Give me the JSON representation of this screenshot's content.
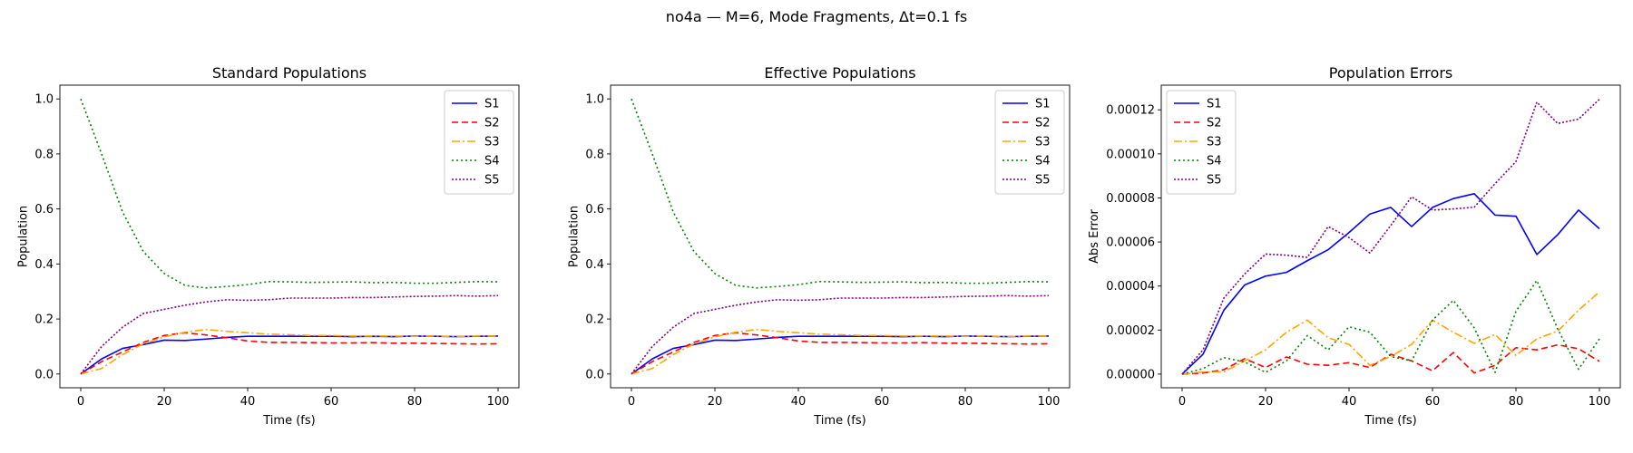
{
  "suptitle": "no4a — M=6, Mode Fragments, Δt=0.1 fs",
  "series_styles": [
    {
      "name": "S1",
      "color": "#0000ff",
      "dash": ""
    },
    {
      "name": "S2",
      "color": "#ff0000",
      "dash": "7,4"
    },
    {
      "name": "S3",
      "color": "#ffa500",
      "dash": "9,3,2,3"
    },
    {
      "name": "S4",
      "color": "#008000",
      "dash": "2,3"
    },
    {
      "name": "S5",
      "color": "#800080",
      "dash": "2,2"
    }
  ],
  "chart_data": [
    {
      "type": "line",
      "title": "Standard Populations",
      "xlabel": "Time (fs)",
      "ylabel": "Population",
      "xlim": [
        -5,
        105
      ],
      "ylim": [
        -0.05,
        1.05
      ],
      "xticks": [
        0,
        20,
        40,
        60,
        80,
        100
      ],
      "yticks": [
        0.0,
        0.2,
        0.4,
        0.6,
        0.8,
        1.0
      ],
      "ytick_labels": [
        "0.0",
        "0.2",
        "0.4",
        "0.6",
        "0.8",
        "1.0"
      ],
      "legend_position": "upper right",
      "grid": false,
      "x": [
        0,
        5,
        10,
        15,
        20,
        25,
        30,
        35,
        40,
        45,
        50,
        55,
        60,
        65,
        70,
        75,
        80,
        85,
        90,
        95,
        100
      ],
      "series": [
        {
          "name": "S1",
          "values": [
            0.0,
            0.055,
            0.093,
            0.107,
            0.123,
            0.122,
            0.127,
            0.133,
            0.137,
            0.137,
            0.137,
            0.137,
            0.137,
            0.136,
            0.137,
            0.136,
            0.138,
            0.137,
            0.136,
            0.137,
            0.138
          ]
        },
        {
          "name": "S2",
          "values": [
            0.0,
            0.045,
            0.08,
            0.115,
            0.14,
            0.15,
            0.142,
            0.132,
            0.12,
            0.115,
            0.115,
            0.114,
            0.113,
            0.113,
            0.114,
            0.112,
            0.112,
            0.111,
            0.11,
            0.109,
            0.11
          ]
        },
        {
          "name": "S3",
          "values": [
            0.0,
            0.02,
            0.07,
            0.11,
            0.135,
            0.152,
            0.162,
            0.155,
            0.15,
            0.145,
            0.143,
            0.14,
            0.14,
            0.138,
            0.138,
            0.138,
            0.137,
            0.138,
            0.136,
            0.138,
            0.138
          ]
        },
        {
          "name": "S4",
          "values": [
            1.0,
            0.8,
            0.59,
            0.445,
            0.365,
            0.322,
            0.313,
            0.318,
            0.325,
            0.336,
            0.335,
            0.333,
            0.334,
            0.335,
            0.332,
            0.333,
            0.33,
            0.33,
            0.333,
            0.336,
            0.335
          ]
        },
        {
          "name": "S5",
          "values": [
            0.0,
            0.1,
            0.17,
            0.22,
            0.235,
            0.25,
            0.262,
            0.27,
            0.268,
            0.27,
            0.276,
            0.276,
            0.276,
            0.278,
            0.278,
            0.28,
            0.282,
            0.283,
            0.285,
            0.283,
            0.285
          ]
        }
      ]
    },
    {
      "type": "line",
      "title": "Effective Populations",
      "xlabel": "Time (fs)",
      "ylabel": "Population",
      "xlim": [
        -5,
        105
      ],
      "ylim": [
        -0.05,
        1.05
      ],
      "xticks": [
        0,
        20,
        40,
        60,
        80,
        100
      ],
      "yticks": [
        0.0,
        0.2,
        0.4,
        0.6,
        0.8,
        1.0
      ],
      "ytick_labels": [
        "0.0",
        "0.2",
        "0.4",
        "0.6",
        "0.8",
        "1.0"
      ],
      "legend_position": "upper right",
      "grid": false,
      "x": [
        0,
        5,
        10,
        15,
        20,
        25,
        30,
        35,
        40,
        45,
        50,
        55,
        60,
        65,
        70,
        75,
        80,
        85,
        90,
        95,
        100
      ],
      "series": [
        {
          "name": "S1",
          "values": [
            0.0,
            0.055,
            0.093,
            0.107,
            0.123,
            0.122,
            0.127,
            0.133,
            0.137,
            0.137,
            0.137,
            0.137,
            0.137,
            0.136,
            0.137,
            0.136,
            0.138,
            0.137,
            0.136,
            0.137,
            0.138
          ]
        },
        {
          "name": "S2",
          "values": [
            0.0,
            0.045,
            0.08,
            0.115,
            0.14,
            0.15,
            0.142,
            0.132,
            0.12,
            0.115,
            0.115,
            0.114,
            0.113,
            0.113,
            0.114,
            0.112,
            0.112,
            0.111,
            0.11,
            0.109,
            0.11
          ]
        },
        {
          "name": "S3",
          "values": [
            0.0,
            0.02,
            0.07,
            0.11,
            0.135,
            0.152,
            0.162,
            0.155,
            0.15,
            0.145,
            0.143,
            0.14,
            0.14,
            0.138,
            0.138,
            0.138,
            0.137,
            0.138,
            0.136,
            0.138,
            0.138
          ]
        },
        {
          "name": "S4",
          "values": [
            1.0,
            0.8,
            0.59,
            0.445,
            0.365,
            0.322,
            0.313,
            0.318,
            0.325,
            0.336,
            0.335,
            0.333,
            0.334,
            0.335,
            0.332,
            0.333,
            0.33,
            0.33,
            0.333,
            0.336,
            0.335
          ]
        },
        {
          "name": "S5",
          "values": [
            0.0,
            0.1,
            0.17,
            0.22,
            0.235,
            0.25,
            0.262,
            0.27,
            0.268,
            0.27,
            0.276,
            0.276,
            0.276,
            0.278,
            0.278,
            0.28,
            0.282,
            0.283,
            0.285,
            0.283,
            0.285
          ]
        }
      ]
    },
    {
      "type": "line",
      "title": "Population Errors",
      "xlabel": "Time (fs)",
      "ylabel": "Abs Error",
      "xlim": [
        -5,
        105
      ],
      "ylim": [
        -6.2e-06,
        0.0001312
      ],
      "xticks": [
        0,
        20,
        40,
        60,
        80,
        100
      ],
      "yticks": [
        0.0,
        2e-05,
        4e-05,
        6e-05,
        8e-05,
        0.0001,
        0.00012
      ],
      "ytick_labels": [
        "0.00000",
        "0.00002",
        "0.00004",
        "0.00006",
        "0.00008",
        "0.00010",
        "0.00012"
      ],
      "legend_position": "upper left",
      "grid": false,
      "x": [
        0,
        5,
        10,
        15,
        20,
        25,
        30,
        35,
        40,
        45,
        50,
        55,
        60,
        65,
        70,
        75,
        80,
        85,
        90,
        95,
        100
      ],
      "series": [
        {
          "name": "S1",
          "values": [
            0.0,
            9e-06,
            2.9e-05,
            4.05e-05,
            4.45e-05,
            4.62e-05,
            5.15e-05,
            5.65e-05,
            6.43e-05,
            7.27e-05,
            7.57e-05,
            6.7e-05,
            7.57e-05,
            7.97e-05,
            8.19e-05,
            7.22e-05,
            7.17e-05,
            5.43e-05,
            6.33e-05,
            7.45e-05,
            6.6e-05
          ]
        },
        {
          "name": "S2",
          "values": [
            0.0,
            5e-07,
            2e-06,
            7e-06,
            3e-06,
            7.8e-06,
            4.5e-06,
            4e-06,
            5.2e-06,
            3e-06,
            9e-06,
            6e-06,
            1.5e-06,
            9.8e-06,
            5e-07,
            4e-06,
            1.2e-05,
            1.1e-05,
            1.33e-05,
            1.15e-05,
            5.8e-06
          ]
        },
        {
          "name": "S3",
          "values": [
            0.0,
            1e-06,
            1e-06,
            6e-06,
            1.1e-05,
            1.9e-05,
            2.45e-05,
            1.65e-05,
            1.35e-05,
            4e-06,
            8e-06,
            1.35e-05,
            2.45e-05,
            1.9e-05,
            1.4e-05,
            1.8e-05,
            8.5e-06,
            1.6e-05,
            1.95e-05,
            2.9e-05,
            3.73e-05
          ]
        },
        {
          "name": "S4",
          "values": [
            0.0,
            2.5e-06,
            7.5e-06,
            5.5e-06,
            8e-07,
            6e-06,
            1.75e-05,
            1.1e-05,
            2.15e-05,
            1.9e-05,
            8e-06,
            6e-06,
            2.45e-05,
            3.35e-05,
            2.1e-05,
            8e-07,
            2.85e-05,
            4.25e-05,
            2.05e-05,
            2.2e-06,
            1.6e-05
          ]
        },
        {
          "name": "S5",
          "values": [
            0.0,
            1.1e-05,
            3.45e-05,
            4.55e-05,
            5.45e-05,
            5.4e-05,
            5.3e-05,
            6.7e-05,
            6.2e-05,
            5.5e-05,
            6.75e-05,
            8.05e-05,
            7.45e-05,
            7.5e-05,
            7.58e-05,
            8.65e-05,
            9.65e-05,
            0.0001235,
            0.0001138,
            0.0001158,
            0.0001248
          ]
        }
      ]
    }
  ]
}
